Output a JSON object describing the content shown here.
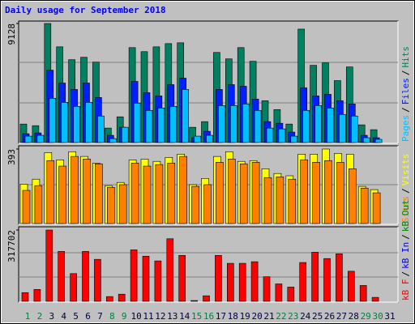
{
  "chart_data": [
    {
      "type": "bar",
      "title": "Daily usage for September 2018",
      "legend_separator": "/",
      "ylim": [
        0,
        9128
      ],
      "yticks": [
        9128
      ],
      "series": [
        {
          "name": "Hits",
          "color": "#008060",
          "values": [
            1418,
            1295,
            9128,
            7339,
            6353,
            6538,
            6168,
            1110,
            1974,
            7278,
            6969,
            7339,
            7586,
            7648,
            1172,
            1604,
            6908,
            6414,
            7278,
            6229,
            3207,
            2529,
            1418,
            8696,
            5921,
            6106,
            4749,
            5798,
            1357,
            987,
            null
          ]
        },
        {
          "name": "Files",
          "color": "#0020ff",
          "values": [
            678,
            740,
            5551,
            4564,
            4071,
            4564,
            3454,
            555,
            1172,
            4687,
            3824,
            3577,
            4441,
            4934,
            370,
            863,
            4071,
            4441,
            4317,
            3330,
            1604,
            1480,
            802,
            4194,
            3577,
            3700,
            3207,
            2960,
            555,
            370,
            null
          ]
        },
        {
          "name": "Pages",
          "color": "#00c0ff",
          "values": [
            493,
            555,
            3392,
            3084,
            2775,
            3084,
            2035,
            308,
            1172,
            3022,
            2467,
            2652,
            2775,
            4071,
            493,
            555,
            2837,
            2837,
            2960,
            2467,
            1110,
            1048,
            493,
            2467,
            2837,
            2652,
            2159,
            2035,
            370,
            247,
            null
          ]
        }
      ]
    },
    {
      "type": "bar",
      "legend_separator": "/",
      "ylim": [
        0,
        393
      ],
      "yticks": [
        393
      ],
      "series": [
        {
          "name": "Visits",
          "color": "#ffff00",
          "values": [
            208,
            234,
            374,
            336,
            379,
            354,
            319,
            200,
            217,
            336,
            340,
            328,
            349,
            366,
            205,
            238,
            354,
            379,
            328,
            332,
            289,
            264,
            252,
            366,
            366,
            393,
            370,
            366,
            196,
            179,
            null
          ]
        },
        {
          "name": "Sites",
          "color": "#ff8000",
          "values": [
            175,
            200,
            332,
            303,
            354,
            340,
            315,
            191,
            205,
            319,
            303,
            311,
            319,
            354,
            196,
            205,
            323,
            340,
            315,
            323,
            242,
            246,
            234,
            336,
            323,
            332,
            323,
            289,
            187,
            162,
            null
          ]
        }
      ]
    },
    {
      "type": "bar",
      "legend_separator": "/",
      "ylim": [
        0,
        317702
      ],
      "yticks": [
        317702
      ],
      "categories": [
        "1",
        "2",
        "3",
        "4",
        "5",
        "6",
        "7",
        "8",
        "9",
        "10",
        "11",
        "12",
        "13",
        "14",
        "15",
        "16",
        "17",
        "18",
        "19",
        "20",
        "21",
        "22",
        "23",
        "24",
        "25",
        "26",
        "27",
        "28",
        "29",
        "30",
        "31"
      ],
      "category_colors": [
        "#008040",
        "#008040",
        "#000040",
        "#000040",
        "#000040",
        "#000040",
        "#000040",
        "#008040",
        "#008040",
        "#000040",
        "#000040",
        "#000040",
        "#000040",
        "#000040",
        "#008040",
        "#008040",
        "#000040",
        "#000040",
        "#000040",
        "#000040",
        "#000040",
        "#008040",
        "#008040",
        "#000040",
        "#000040",
        "#000040",
        "#000040",
        "#000040",
        "#008040",
        "#008040",
        "#000040"
      ],
      "series": [
        {
          "name": "kB F",
          "color": "#ff0000",
          "values": [
            38831,
            52950,
            317702,
            222391,
            123551,
            222391,
            187091,
            21180,
            31770,
            229451,
            201211,
            180031,
            278872,
            204741,
            3530,
            24710,
            204741,
            169441,
            169441,
            176501,
            109431,
            77661,
            63540,
            172971,
            218861,
            190621,
            211801,
            134141,
            70600,
            17650,
            null
          ]
        }
      ],
      "legend_extra": [
        {
          "name": "kB In",
          "color": "#0000ff"
        },
        {
          "name": "kB Out",
          "color": "#008000"
        }
      ]
    }
  ]
}
